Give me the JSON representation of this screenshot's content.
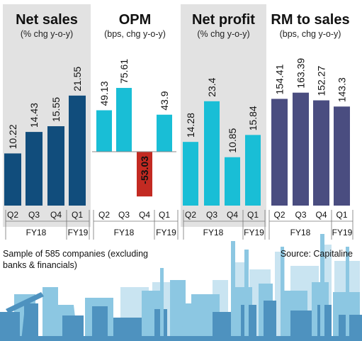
{
  "colors": {
    "panel_shaded": "#e2e2e2",
    "bar_blue": "#114d7c",
    "bar_cyan": "#19bed6",
    "bar_negative": "#c32a22",
    "bar_purple": "#4a4d80",
    "skyline_light": "#c9e4f1",
    "skyline_mid": "#8cc7e2",
    "skyline_dark": "#4e92bf"
  },
  "panels": [
    {
      "title": "Net sales",
      "subtitle": "(% chg y-o-y)"
    },
    {
      "title": "OPM",
      "subtitle": "(bps, chg y-o-y)"
    },
    {
      "title": "Net profit",
      "subtitle": "(% chg y-o-y)"
    },
    {
      "title": "RM to sales",
      "subtitle": "(bps, chg y-o-y)"
    }
  ],
  "chart_data": [
    {
      "type": "bar",
      "title": "Net sales",
      "subtitle": "(% chg y-o-y)",
      "categories": [
        "Q2",
        "Q3",
        "Q4",
        "Q1"
      ],
      "periods": [
        "FY18",
        "FY19"
      ],
      "values": [
        10.22,
        14.43,
        15.55,
        21.55
      ],
      "labels": [
        "10.22",
        "14.43",
        "15.55",
        "21.55"
      ],
      "ylim": [
        0,
        25
      ],
      "color": "#114d7c",
      "shaded": true
    },
    {
      "type": "bar",
      "title": "OPM",
      "subtitle": "(bps, chg y-o-y)",
      "categories": [
        "Q2",
        "Q3",
        "Q4",
        "Q1"
      ],
      "periods": [
        "FY18",
        "FY19"
      ],
      "values": [
        49.13,
        75.61,
        -53.03,
        43.9
      ],
      "labels": [
        "49.13",
        "75.61",
        "-53.03",
        "43.9"
      ],
      "ylim": [
        -60,
        100
      ],
      "color": "#19bed6",
      "negative_color": "#c32a22",
      "shaded": false
    },
    {
      "type": "bar",
      "title": "Net profit",
      "subtitle": "(% chg y-o-y)",
      "categories": [
        "Q2",
        "Q3",
        "Q4",
        "Q1"
      ],
      "periods": [
        "FY18",
        "FY19"
      ],
      "values": [
        14.28,
        23.4,
        10.85,
        15.84
      ],
      "labels": [
        "14.28",
        "23.4",
        "10.85",
        "15.84"
      ],
      "ylim": [
        0,
        31
      ],
      "color": "#19bed6",
      "shaded": true
    },
    {
      "type": "bar",
      "title": "RM to sales",
      "subtitle": "(bps, chg y-o-y)",
      "categories": [
        "Q2",
        "Q3",
        "Q4",
        "Q1"
      ],
      "periods": [
        "FY18",
        "FY19"
      ],
      "values": [
        154.41,
        163.39,
        152.27,
        143.3
      ],
      "labels": [
        "154.41",
        "163.39",
        "152.27",
        "143.3"
      ],
      "ylim": [
        0,
        200
      ],
      "color": "#4a4d80",
      "shaded": false
    }
  ],
  "footer": {
    "note_line1": "Sample of 585 companies (excluding",
    "note_line2": "banks & financials)",
    "source": "Source: Capitaline"
  }
}
